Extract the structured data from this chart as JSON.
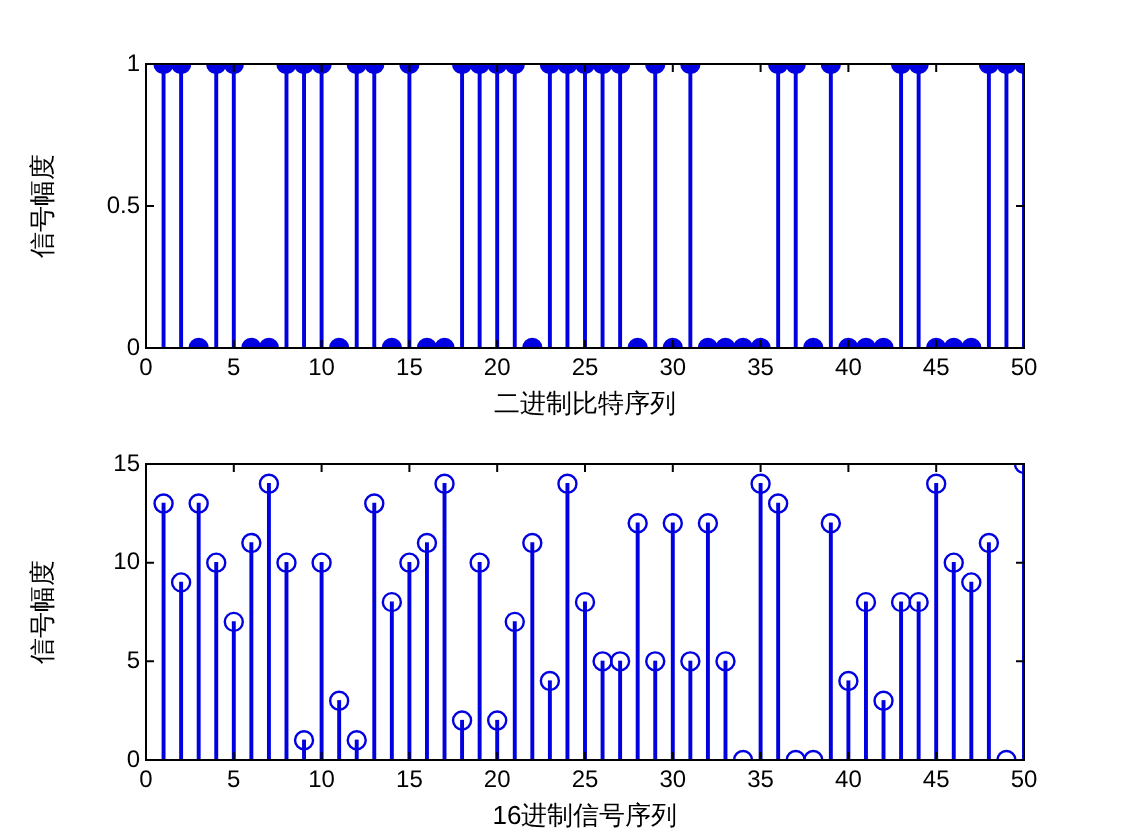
{
  "chart_data": [
    {
      "type": "lollipop",
      "xlabel": "二进制比特序列",
      "ylabel": "信号幅度",
      "x": [
        1,
        2,
        3,
        4,
        5,
        6,
        7,
        8,
        9,
        10,
        11,
        12,
        13,
        14,
        15,
        16,
        17,
        18,
        19,
        20,
        21,
        22,
        23,
        24,
        25,
        26,
        27,
        28,
        29,
        30,
        31,
        32,
        33,
        34,
        35,
        36,
        37,
        38,
        39,
        40,
        41,
        42,
        43,
        44,
        45,
        46,
        47,
        48,
        49,
        50
      ],
      "series": [
        {
          "color": "#0000e0",
          "values": [
            1,
            1,
            0,
            1,
            1,
            0,
            0,
            1,
            1,
            1,
            0,
            1,
            1,
            0,
            1,
            0,
            0,
            1,
            1,
            1,
            1,
            0,
            1,
            1,
            1,
            1,
            1,
            0,
            1,
            0,
            1,
            0,
            0,
            0,
            0,
            1,
            1,
            0,
            1,
            0,
            0,
            0,
            1,
            1,
            0,
            0,
            0,
            1,
            1,
            1
          ]
        }
      ],
      "xlim": [
        0,
        50
      ],
      "xticks": [
        0,
        5,
        10,
        15,
        20,
        25,
        30,
        35,
        40,
        45,
        50
      ],
      "ylim": [
        0,
        1
      ],
      "yticks": [
        0,
        0.5,
        1
      ],
      "marker": "circle",
      "grid": false,
      "legend": false
    },
    {
      "type": "lollipop",
      "xlabel": "16进制信号序列",
      "ylabel": "信号幅度",
      "x": [
        1,
        2,
        3,
        4,
        5,
        6,
        7,
        8,
        9,
        10,
        11,
        12,
        13,
        14,
        15,
        16,
        17,
        18,
        19,
        20,
        21,
        22,
        23,
        24,
        25,
        26,
        27,
        28,
        29,
        30,
        31,
        32,
        33,
        34,
        35,
        36,
        37,
        38,
        39,
        40,
        41,
        42,
        43,
        44,
        45,
        46,
        47,
        48,
        49,
        50
      ],
      "series": [
        {
          "color": "#0000e0",
          "values": [
            13,
            9,
            13,
            10,
            7,
            11,
            14,
            10,
            1,
            10,
            3,
            1,
            13,
            8,
            10,
            11,
            14,
            2,
            10,
            2,
            7,
            11,
            4,
            14,
            8,
            5,
            5,
            12,
            5,
            12,
            5,
            12,
            5,
            0,
            14,
            13,
            0,
            0,
            12,
            4,
            8,
            3,
            8,
            8,
            14,
            10,
            9,
            11,
            0,
            15
          ]
        }
      ],
      "xlim": [
        0,
        50
      ],
      "xticks": [
        0,
        5,
        10,
        15,
        20,
        25,
        30,
        35,
        40,
        45,
        50
      ],
      "ylim": [
        0,
        15
      ],
      "yticks": [
        0,
        5,
        10,
        15
      ],
      "marker": "circle",
      "grid": false,
      "legend": false
    }
  ]
}
